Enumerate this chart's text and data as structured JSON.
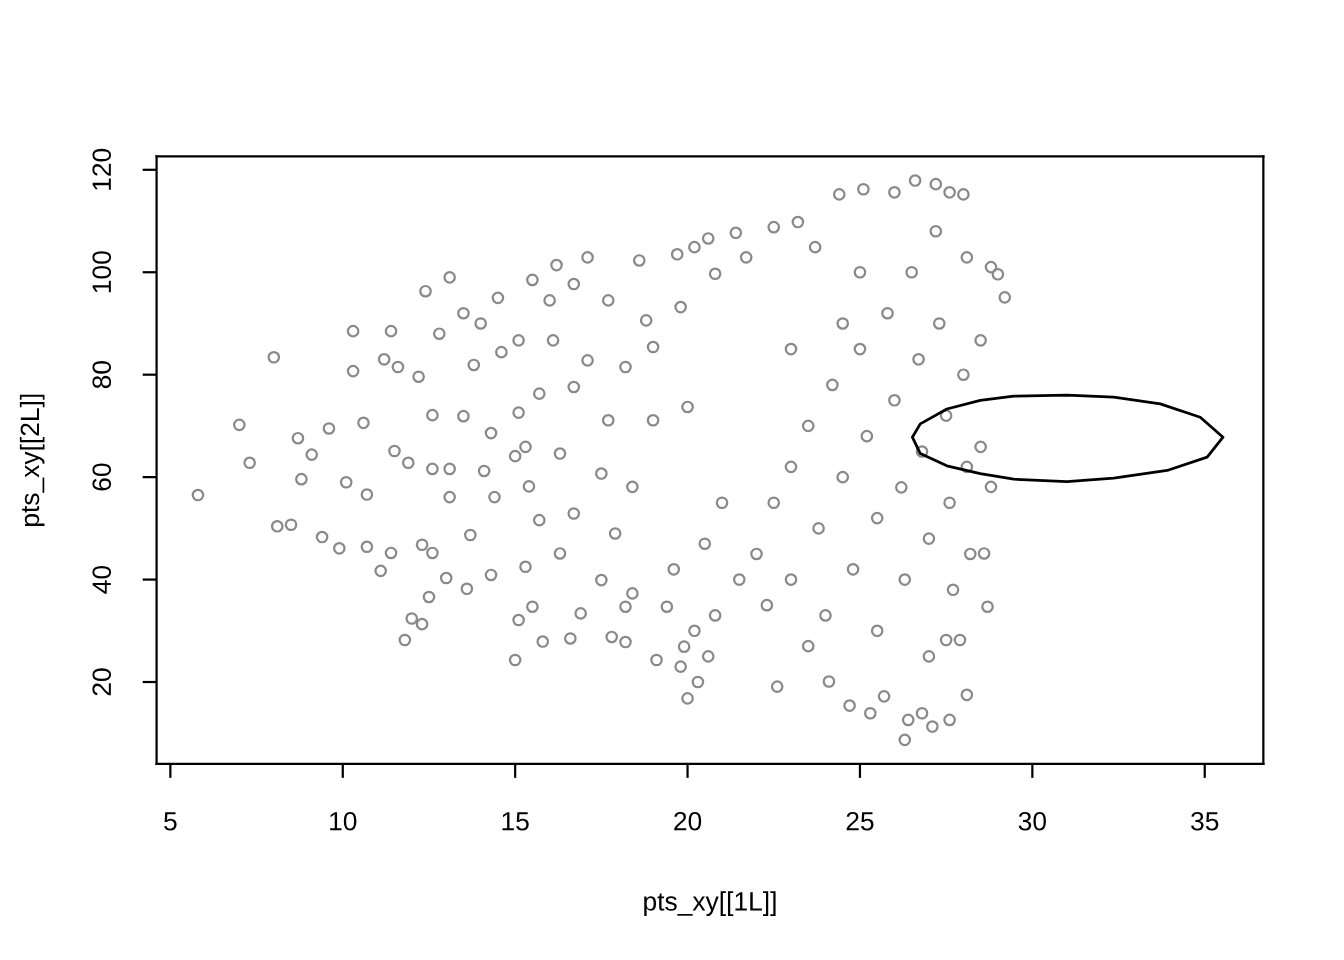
{
  "chart_data": {
    "type": "scatter",
    "xlabel": "pts_xy[[1L]]",
    "ylabel": "pts_xy[[2L]]",
    "xlim": [
      4.6,
      36.7
    ],
    "ylim": [
      4.0,
      122.6
    ],
    "xticks": [
      5,
      10,
      15,
      20,
      25,
      30,
      35
    ],
    "yticks": [
      20,
      40,
      60,
      80,
      100,
      120
    ],
    "grid": false,
    "series": [
      {
        "color": "#898989",
        "marker": "circle",
        "x": [
          5.8,
          7.0,
          7.3,
          8.0,
          8.1,
          8.5,
          8.7,
          9.1,
          8.8,
          9.4,
          9.9,
          9.6,
          10.3,
          10.3,
          10.6,
          10.1,
          10.7,
          10.7,
          11.1,
          11.4,
          11.4,
          11.2,
          11.6,
          11.5,
          11.9,
          11.8,
          12.0,
          12.3,
          12.5,
          12.4,
          13.1,
          12.2,
          12.6,
          12.6,
          13.1,
          12.3,
          12.6,
          13.1,
          13.0,
          13.6,
          13.7,
          13.5,
          13.8,
          14.1,
          14.3,
          14.4,
          14.3,
          14.6,
          15.0,
          15.0,
          15.1,
          15.4,
          15.1,
          15.5,
          13.5,
          14.5,
          12.8,
          14.0,
          16.2,
          17.1,
          15.8,
          16.6,
          17.8,
          18.2,
          19.1,
          19.7,
          20.2,
          20.6,
          21.4,
          22.5,
          23.2,
          16.0,
          16.7,
          17.7,
          18.6,
          18.8,
          19.8,
          20.8,
          21.7,
          23.7,
          15.1,
          16.1,
          17.1,
          18.2,
          19.0,
          15.7,
          16.7,
          17.7,
          19.0,
          20.0,
          15.3,
          16.3,
          17.5,
          18.4,
          15.7,
          16.7,
          17.9,
          15.3,
          16.3,
          17.5,
          18.4,
          15.5,
          16.9,
          18.2,
          19.4,
          20.0,
          19.8,
          19.9,
          20.3,
          20.6,
          20.2,
          20.8,
          19.6,
          20.5,
          21.0,
          21.5,
          22.6,
          24.1,
          24.7,
          25.3,
          25.7,
          26.3,
          26.4,
          26.8,
          27.1,
          27.6,
          28.1,
          24.4,
          25.1,
          26.0,
          26.6,
          27.2,
          27.6,
          28.0,
          29.2,
          29.0,
          28.8,
          28.1,
          28.8,
          28.7,
          28.6,
          28.5,
          28.5,
          27.9,
          27.5,
          22.0,
          22.5,
          23.0,
          23.0,
          23.5,
          23.8,
          24.0,
          24.2,
          24.5,
          24.8,
          25.0,
          25.2,
          25.5,
          25.5,
          25.8,
          26.0,
          26.2,
          26.3,
          26.5,
          26.7,
          26.8,
          27.0,
          27.0,
          27.2,
          27.3,
          27.5,
          27.6,
          27.7,
          28.0,
          28.1,
          28.2,
          22.3,
          23.5,
          24.5,
          25.0,
          23.0
        ],
        "values": [
          56.5,
          70.2,
          62.8,
          83.4,
          50.4,
          50.7,
          67.6,
          64.4,
          59.6,
          48.3,
          46.1,
          69.5,
          88.5,
          80.7,
          70.6,
          59.0,
          56.6,
          46.4,
          41.7,
          45.2,
          88.5,
          83.0,
          81.5,
          65.1,
          62.8,
          28.2,
          32.4,
          31.3,
          36.6,
          96.3,
          99.0,
          79.6,
          72.1,
          61.6,
          61.6,
          46.8,
          45.2,
          56.1,
          40.3,
          38.2,
          48.7,
          71.9,
          81.9,
          61.2,
          68.6,
          56.1,
          40.9,
          84.4,
          64.1,
          24.3,
          32.1,
          58.2,
          72.6,
          98.5,
          92,
          95,
          88,
          90,
          101.4,
          102.9,
          27.9,
          28.5,
          28.8,
          27.8,
          24.3,
          103.5,
          104.9,
          106.6,
          107.7,
          108.8,
          109.8,
          94.5,
          97.7,
          94.5,
          102.3,
          90.6,
          93.2,
          99.7,
          102.9,
          104.9,
          86.7,
          86.7,
          82.8,
          81.5,
          85.4,
          76.3,
          77.6,
          71.1,
          71.1,
          73.7,
          65.9,
          64.6,
          60.7,
          58.1,
          51.6,
          52.9,
          49.0,
          42.5,
          45.1,
          39.9,
          37.3,
          34.7,
          33.4,
          34.7,
          34.7,
          16.8,
          23.0,
          26.9,
          20.0,
          25.0,
          30.0,
          33.0,
          42.0,
          47.0,
          55.0,
          40.0,
          19.1,
          20.1,
          15.4,
          13.9,
          17.2,
          8.7,
          12.6,
          13.9,
          11.3,
          12.6,
          17.5,
          115.2,
          116.2,
          115.6,
          117.9,
          117.2,
          115.6,
          115.2,
          95.1,
          99.6,
          101.0,
          102.9,
          58.1,
          34.7,
          45.1,
          86.7,
          65.9,
          28.2,
          28.2,
          45,
          55,
          62,
          40,
          70,
          50,
          33,
          78,
          60,
          42,
          85,
          68,
          52,
          30,
          92,
          75,
          58,
          40,
          100,
          83,
          65,
          48,
          25,
          108,
          90,
          72,
          55,
          38,
          80,
          62,
          45,
          35,
          27,
          90,
          100,
          85
        ]
      }
    ]
  }
}
